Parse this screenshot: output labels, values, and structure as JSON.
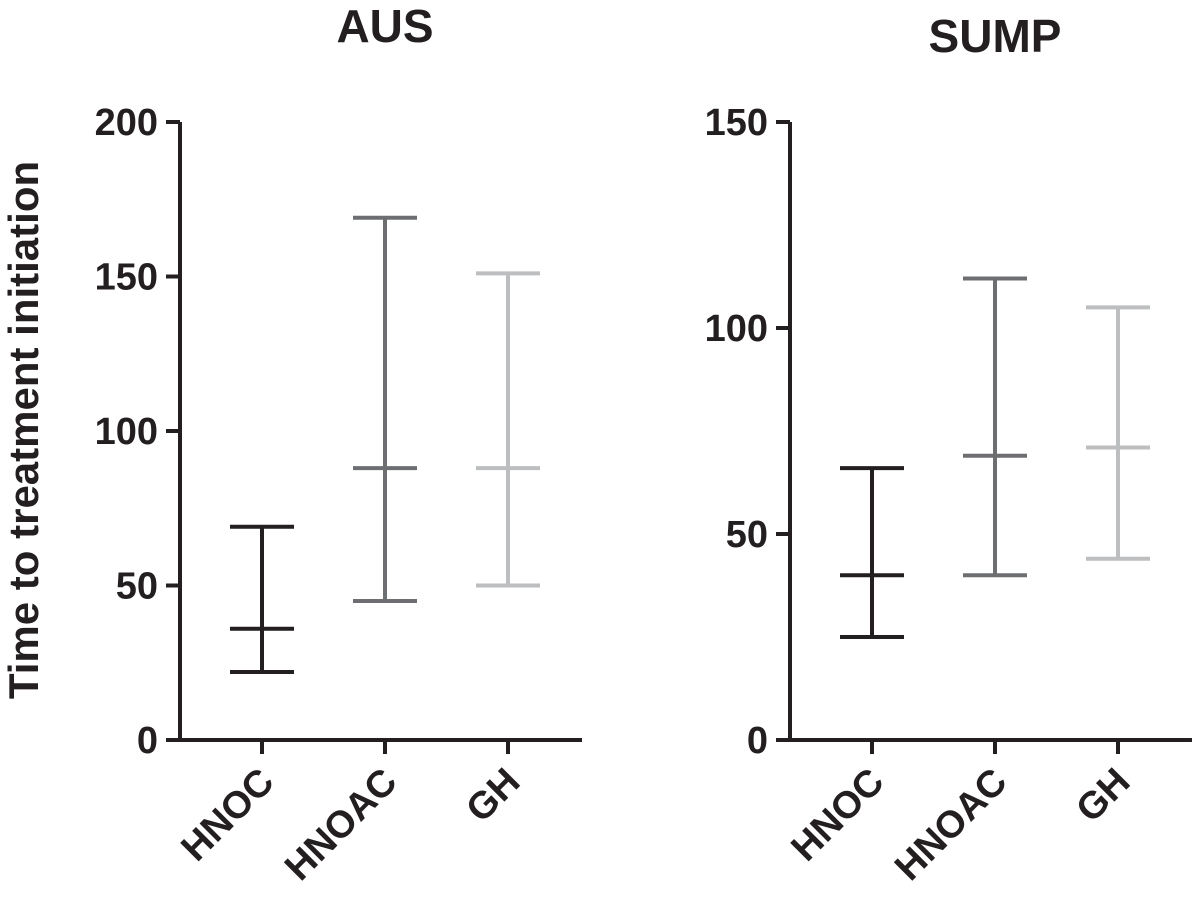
{
  "figure": {
    "ylabel": "Time to treatment initiation"
  },
  "chart_data": [
    {
      "type": "error-bar",
      "title": "AUS",
      "xlabel": "",
      "ylabel": "Time to treatment initiation",
      "ylim": [
        0,
        200
      ],
      "yticks": [
        0,
        50,
        100,
        150,
        200
      ],
      "categories": [
        "HNOC",
        "HNOAC",
        "GH"
      ],
      "colors": [
        "#231f20",
        "#6d6e71",
        "#bcbec0"
      ],
      "series": [
        {
          "name": "HNOC",
          "median": 36,
          "lower": 22,
          "upper": 69
        },
        {
          "name": "HNOAC",
          "median": 88,
          "lower": 45,
          "upper": 169
        },
        {
          "name": "GH",
          "median": 88,
          "lower": 50,
          "upper": 151
        }
      ]
    },
    {
      "type": "error-bar",
      "title": "SUMP",
      "xlabel": "",
      "ylabel": "",
      "ylim": [
        0,
        150
      ],
      "yticks": [
        0,
        50,
        100,
        150
      ],
      "categories": [
        "HNOC",
        "HNOAC",
        "GH"
      ],
      "colors": [
        "#231f20",
        "#6d6e71",
        "#bcbec0"
      ],
      "series": [
        {
          "name": "HNOC",
          "median": 40,
          "lower": 25,
          "upper": 66
        },
        {
          "name": "HNOAC",
          "median": 69,
          "lower": 40,
          "upper": 112
        },
        {
          "name": "GH",
          "median": 71,
          "lower": 44,
          "upper": 105
        }
      ]
    }
  ]
}
